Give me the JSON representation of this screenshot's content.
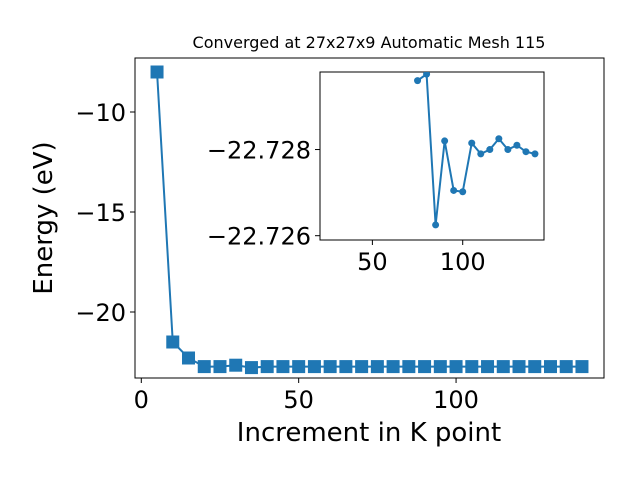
{
  "chart_data": [
    {
      "type": "line",
      "title": "Converged at 27x27x9 Automatic Mesh 115",
      "xlabel": "Increment in K point",
      "ylabel": "Energy (eV)",
      "xlim": [
        -2,
        147
      ],
      "ylim": [
        -23.3,
        -7.3
      ],
      "xticks": [
        0,
        50,
        100
      ],
      "yticks": [
        -10,
        -15,
        -20
      ],
      "marker": "square",
      "grid": false,
      "color": "#1f77b4",
      "series": [
        {
          "x": [
            5,
            10,
            15,
            20,
            25,
            30,
            35,
            40,
            45,
            50,
            55,
            60,
            65,
            70,
            75,
            80,
            85,
            90,
            95,
            100,
            105,
            110,
            115,
            120,
            125,
            130,
            135,
            140
          ],
          "values": [
            -8.0,
            -21.5,
            -22.3,
            -22.73,
            -22.73,
            -22.66,
            -22.78,
            -22.73,
            -22.73,
            -22.73,
            -22.73,
            -22.73,
            -22.73,
            -22.73,
            -22.73,
            -22.73,
            -22.73,
            -22.73,
            -22.73,
            -22.73,
            -22.73,
            -22.73,
            -22.73,
            -22.73,
            -22.73,
            -22.73,
            -22.73,
            -22.73
          ]
        }
      ]
    },
    {
      "type": "line",
      "title": "",
      "xlabel": "",
      "ylabel": "",
      "xlim": [
        21,
        145
      ],
      "ylim": [
        -22.7259,
        -22.7298
      ],
      "xticks": [
        50,
        100
      ],
      "yticks": [
        -22.728,
        -22.726
      ],
      "marker": "circle",
      "grid": false,
      "color": "#1f77b4",
      "series": [
        {
          "x": [
            75,
            80,
            85,
            90,
            95,
            100,
            105,
            110,
            115,
            120,
            125,
            130,
            135,
            140
          ],
          "values": [
            -22.7296,
            -22.72975,
            -22.72625,
            -22.7282,
            -22.72705,
            -22.72702,
            -22.72815,
            -22.7279,
            -22.728,
            -22.72825,
            -22.728,
            -22.7281,
            -22.72795,
            -22.7279
          ]
        }
      ]
    }
  ]
}
